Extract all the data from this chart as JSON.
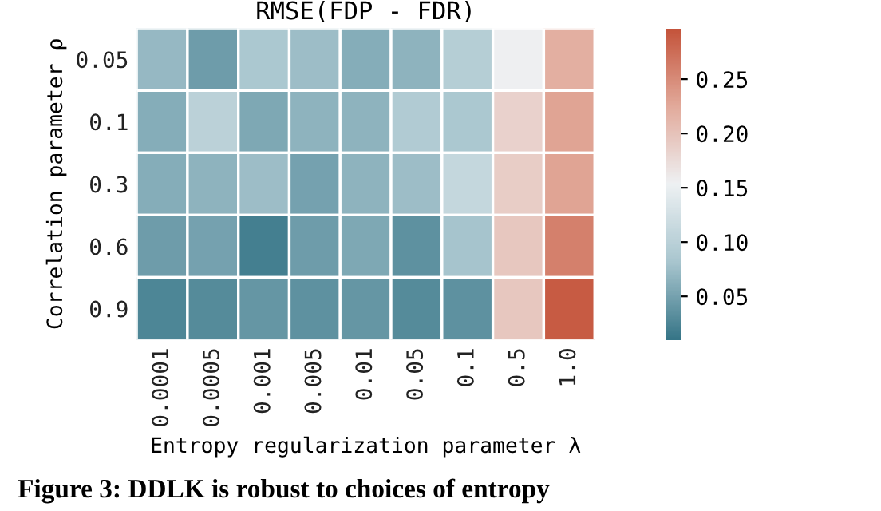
{
  "chart_data": {
    "type": "heatmap",
    "title": "RMSE(FDP - FDR)",
    "xlabel": "Entropy regularization parameter λ",
    "ylabel": "Correlation parameter ρ",
    "categories": [
      "0.0001",
      "0.0005",
      "0.001",
      "0.005",
      "0.01",
      "0.05",
      "0.1",
      "0.5",
      "1.0"
    ],
    "y_categories": [
      "0.05",
      "0.1",
      "0.3",
      "0.6",
      "0.9"
    ],
    "cells": [
      [
        0.07,
        0.045,
        0.085,
        0.075,
        0.06,
        0.065,
        0.095,
        0.155,
        0.22
      ],
      [
        0.06,
        0.1,
        0.055,
        0.065,
        0.065,
        0.09,
        0.085,
        0.185,
        0.23
      ],
      [
        0.06,
        0.065,
        0.075,
        0.05,
        0.065,
        0.075,
        0.11,
        0.19,
        0.23
      ],
      [
        0.045,
        0.05,
        0.02,
        0.045,
        0.055,
        0.035,
        0.08,
        0.195,
        0.26
      ],
      [
        0.025,
        0.03,
        0.04,
        0.035,
        0.04,
        0.03,
        0.035,
        0.195,
        0.29
      ]
    ],
    "clim": [
      0.01,
      0.297
    ],
    "cticks": [
      0.05,
      {
        "value": 0.1,
        "label": "0.10"
      },
      0.15,
      {
        "value": 0.2,
        "label": "0.20"
      },
      0.25
    ],
    "annotations": [
      "Figure 3: DDLK is robust to choices of entropy"
    ]
  }
}
